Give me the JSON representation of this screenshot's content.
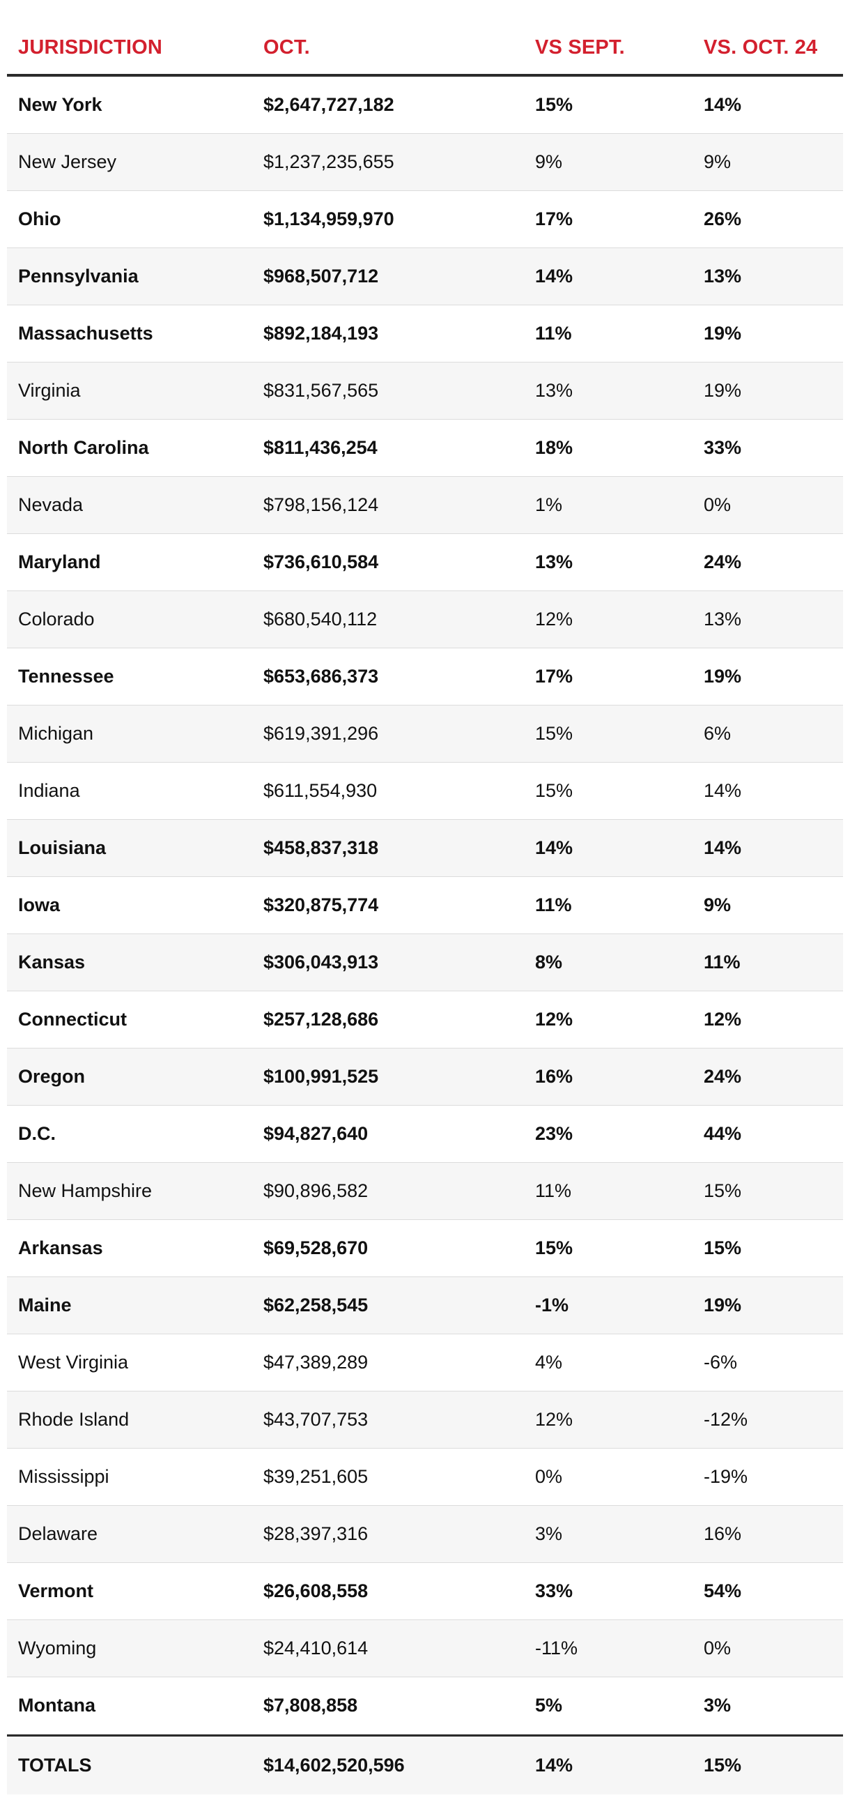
{
  "colors": {
    "header_text": "#d3202e",
    "rule": "#2b2b2b",
    "alt_row": "#f6f6f6"
  },
  "headers": [
    "JURISDICTION",
    "OCT.",
    "VS SEPT.",
    "VS. OCT. 24"
  ],
  "rows": [
    {
      "name": "New York",
      "oct": "$2,647,727,182",
      "vs_sept": "15%",
      "vs_oct24": "14%",
      "bold": true
    },
    {
      "name": "New Jersey",
      "oct": "$1,237,235,655",
      "vs_sept": "9%",
      "vs_oct24": "9%",
      "bold": false
    },
    {
      "name": "Ohio",
      "oct": "$1,134,959,970",
      "vs_sept": "17%",
      "vs_oct24": "26%",
      "bold": true
    },
    {
      "name": "Pennsylvania",
      "oct": "$968,507,712",
      "vs_sept": "14%",
      "vs_oct24": "13%",
      "bold": true
    },
    {
      "name": "Massachusetts",
      "oct": "$892,184,193",
      "vs_sept": "11%",
      "vs_oct24": "19%",
      "bold": true
    },
    {
      "name": "Virginia",
      "oct": "$831,567,565",
      "vs_sept": "13%",
      "vs_oct24": "19%",
      "bold": false
    },
    {
      "name": "North Carolina",
      "oct": "$811,436,254",
      "vs_sept": "18%",
      "vs_oct24": "33%",
      "bold": true
    },
    {
      "name": "Nevada",
      "oct": "$798,156,124",
      "vs_sept": "1%",
      "vs_oct24": "0%",
      "bold": false
    },
    {
      "name": "Maryland",
      "oct": "$736,610,584",
      "vs_sept": "13%",
      "vs_oct24": "24%",
      "bold": true
    },
    {
      "name": "Colorado",
      "oct": "$680,540,112",
      "vs_sept": "12%",
      "vs_oct24": "13%",
      "bold": false
    },
    {
      "name": "Tennessee",
      "oct": "$653,686,373",
      "vs_sept": "17%",
      "vs_oct24": "19%",
      "bold": true
    },
    {
      "name": "Michigan",
      "oct": "$619,391,296",
      "vs_sept": "15%",
      "vs_oct24": "6%",
      "bold": false
    },
    {
      "name": "Indiana",
      "oct": "$611,554,930",
      "vs_sept": "15%",
      "vs_oct24": "14%",
      "bold": false
    },
    {
      "name": "Louisiana",
      "oct": "$458,837,318",
      "vs_sept": "14%",
      "vs_oct24": "14%",
      "bold": true
    },
    {
      "name": "Iowa",
      "oct": "$320,875,774",
      "vs_sept": "11%",
      "vs_oct24": "9%",
      "bold": true
    },
    {
      "name": "Kansas",
      "oct": "$306,043,913",
      "vs_sept": "8%",
      "vs_oct24": "11%",
      "bold": true
    },
    {
      "name": "Connecticut",
      "oct": "$257,128,686",
      "vs_sept": "12%",
      "vs_oct24": "12%",
      "bold": true
    },
    {
      "name": "Oregon",
      "oct": "$100,991,525",
      "vs_sept": "16%",
      "vs_oct24": "24%",
      "bold": true
    },
    {
      "name": "D.C.",
      "oct": "$94,827,640",
      "vs_sept": "23%",
      "vs_oct24": "44%",
      "bold": true
    },
    {
      "name": "New Hampshire",
      "oct": "$90,896,582",
      "vs_sept": "11%",
      "vs_oct24": "15%",
      "bold": false
    },
    {
      "name": "Arkansas",
      "oct": "$69,528,670",
      "vs_sept": "15%",
      "vs_oct24": "15%",
      "bold": true
    },
    {
      "name": "Maine",
      "oct": "$62,258,545",
      "vs_sept": "-1%",
      "vs_oct24": "19%",
      "bold": true
    },
    {
      "name": "West Virginia",
      "oct": "$47,389,289",
      "vs_sept": "4%",
      "vs_oct24": "-6%",
      "bold": false
    },
    {
      "name": "Rhode Island",
      "oct": "$43,707,753",
      "vs_sept": "12%",
      "vs_oct24": "-12%",
      "bold": false
    },
    {
      "name": "Mississippi",
      "oct": "$39,251,605",
      "vs_sept": "0%",
      "vs_oct24": "-19%",
      "bold": false
    },
    {
      "name": "Delaware",
      "oct": "$28,397,316",
      "vs_sept": "3%",
      "vs_oct24": "16%",
      "bold": false
    },
    {
      "name": "Vermont",
      "oct": "$26,608,558",
      "vs_sept": "33%",
      "vs_oct24": "54%",
      "bold": true
    },
    {
      "name": "Wyoming",
      "oct": "$24,410,614",
      "vs_sept": "-11%",
      "vs_oct24": "0%",
      "bold": false
    },
    {
      "name": "Montana",
      "oct": "$7,808,858",
      "vs_sept": "5%",
      "vs_oct24": "3%",
      "bold": true
    }
  ],
  "totals": {
    "name": "TOTALS",
    "oct": "$14,602,520,596",
    "vs_sept": "14%",
    "vs_oct24": "15%"
  }
}
